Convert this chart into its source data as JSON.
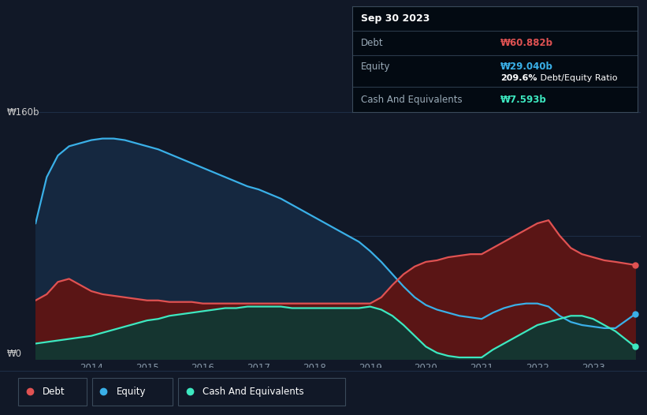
{
  "bg_color": "#111827",
  "plot_bg": "#111827",
  "grid_color": "#1e2d45",
  "ylabel_160": "₩160b",
  "ylabel_0": "₩0",
  "tooltip_title": "Sep 30 2023",
  "tooltip_debt_label": "Debt",
  "tooltip_debt_value": "₩60.882b",
  "tooltip_equity_label": "Equity",
  "tooltip_equity_value": "₩29.040b",
  "tooltip_ratio": "209.6% Debt/Equity Ratio",
  "tooltip_cash_label": "Cash And Equivalents",
  "tooltip_cash_value": "₩7.593b",
  "legend_debt": "Debt",
  "legend_equity": "Equity",
  "legend_cash": "Cash And Equivalents",
  "debt_color": "#e05252",
  "equity_color": "#3ab0e8",
  "cash_color": "#3de8c0",
  "debt_fill": "#5a1515",
  "equity_fill": "#152840",
  "cash_fill": "#153530",
  "years": [
    2013.0,
    2013.2,
    2013.4,
    2013.6,
    2013.8,
    2014.0,
    2014.2,
    2014.4,
    2014.6,
    2014.8,
    2015.0,
    2015.2,
    2015.4,
    2015.6,
    2015.8,
    2016.0,
    2016.2,
    2016.4,
    2016.6,
    2016.8,
    2017.0,
    2017.2,
    2017.4,
    2017.6,
    2017.8,
    2018.0,
    2018.2,
    2018.4,
    2018.6,
    2018.8,
    2019.0,
    2019.2,
    2019.4,
    2019.6,
    2019.8,
    2020.0,
    2020.2,
    2020.4,
    2020.6,
    2020.8,
    2021.0,
    2021.2,
    2021.4,
    2021.6,
    2021.8,
    2022.0,
    2022.2,
    2022.4,
    2022.6,
    2022.8,
    2023.0,
    2023.2,
    2023.4,
    2023.75
  ],
  "debt": [
    38,
    42,
    50,
    52,
    48,
    44,
    42,
    41,
    40,
    39,
    38,
    38,
    37,
    37,
    37,
    36,
    36,
    36,
    36,
    36,
    36,
    36,
    36,
    36,
    36,
    36,
    36,
    36,
    36,
    36,
    36,
    40,
    48,
    55,
    60,
    63,
    64,
    66,
    67,
    68,
    68,
    72,
    76,
    80,
    84,
    88,
    90,
    80,
    72,
    68,
    66,
    64,
    63,
    61
  ],
  "equity": [
    88,
    118,
    132,
    138,
    140,
    142,
    143,
    143,
    142,
    140,
    138,
    136,
    133,
    130,
    127,
    124,
    121,
    118,
    115,
    112,
    110,
    107,
    104,
    100,
    96,
    92,
    88,
    84,
    80,
    76,
    70,
    63,
    55,
    47,
    40,
    35,
    32,
    30,
    28,
    27,
    26,
    30,
    33,
    35,
    36,
    36,
    34,
    28,
    24,
    22,
    21,
    20,
    20,
    29
  ],
  "cash": [
    10,
    11,
    12,
    13,
    14,
    15,
    17,
    19,
    21,
    23,
    25,
    26,
    28,
    29,
    30,
    31,
    32,
    33,
    33,
    34,
    34,
    34,
    34,
    33,
    33,
    33,
    33,
    33,
    33,
    33,
    34,
    32,
    28,
    22,
    15,
    8,
    4,
    2,
    1,
    1,
    1,
    6,
    10,
    14,
    18,
    22,
    24,
    26,
    28,
    28,
    26,
    22,
    18,
    8
  ],
  "xlim": [
    2013.0,
    2023.85
  ],
  "ylim": [
    0,
    175
  ],
  "xticks": [
    2014,
    2015,
    2016,
    2017,
    2018,
    2019,
    2020,
    2021,
    2022,
    2023
  ],
  "xtick_labels": [
    "2014",
    "2015",
    "2016",
    "2017",
    "2018",
    "2019",
    "2020",
    "2021",
    "2022",
    "2023"
  ]
}
